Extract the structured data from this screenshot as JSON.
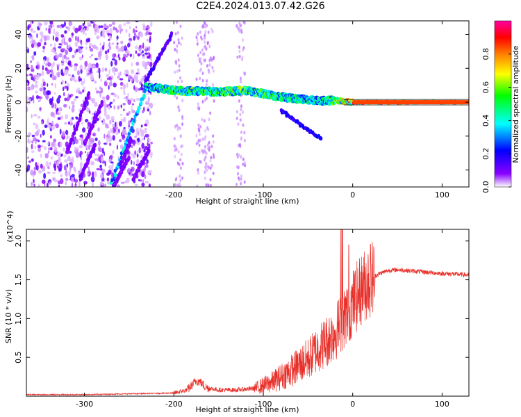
{
  "title": "C2E4.2024.013.07.42.G26",
  "chart_data": [
    {
      "type": "heatmap",
      "xlabel": "Height of straight line (km)",
      "ylabel": "Frequency (Hz)",
      "xlim": [
        -365,
        130
      ],
      "ylim": [
        -50,
        48
      ],
      "xticks": [
        -300,
        -200,
        -100,
        0,
        100
      ],
      "yticks": [
        -40,
        -20,
        0,
        20,
        40
      ],
      "colorbar": {
        "label": "Normalized spectral amplitude",
        "range": [
          0,
          1
        ],
        "ticks": [
          0.0,
          0.2,
          0.4,
          0.6,
          0.8
        ],
        "colors": [
          "#ffffff",
          "#8a00ff",
          "#0000ff",
          "#00ffff",
          "#00ff00",
          "#ffff00",
          "#ff7f00",
          "#ff0000",
          "#ff00a0"
        ]
      },
      "features": {
        "main_band": {
          "x": [
            -230,
            -200,
            -150,
            -120,
            -100,
            -80,
            -60,
            -40,
            -20,
            0,
            50,
            130
          ],
          "frequency": [
            9,
            7,
            6,
            7,
            5,
            3,
            2,
            1,
            1,
            0,
            0,
            0
          ],
          "amplitude": [
            0.4,
            0.5,
            0.5,
            0.55,
            0.5,
            0.5,
            0.45,
            0.4,
            0.55,
            0.8,
            0.8,
            0.8
          ]
        },
        "diagonal_streaks": [
          {
            "x": [
              -270,
              -230
            ],
            "frequency": [
              -48,
              10
            ],
            "amplitude": 0.35
          },
          {
            "x": [
              -232,
              -202
            ],
            "frequency": [
              12,
              40
            ],
            "amplitude": 0.15
          },
          {
            "x": [
              -320,
              -295
            ],
            "frequency": [
              -30,
              5
            ],
            "amplitude": 0.1
          },
          {
            "x": [
              -300,
              -280
            ],
            "frequency": [
              -25,
              0
            ],
            "amplitude": 0.1
          },
          {
            "x": [
              -305,
              -288
            ],
            "frequency": [
              -45,
              -25
            ],
            "amplitude": 0.1
          },
          {
            "x": [
              -260,
              -248
            ],
            "frequency": [
              -38,
              -22
            ],
            "amplitude": 0.1
          },
          {
            "x": [
              -268,
              -250
            ],
            "frequency": [
              -50,
              -32
            ],
            "amplitude": 0.1
          },
          {
            "x": [
              -245,
              -228
            ],
            "frequency": [
              -45,
              -28
            ],
            "amplitude": 0.1
          },
          {
            "x": [
              -80,
              -35
            ],
            "frequency": [
              -5,
              -22
            ],
            "amplitude": 0.2
          }
        ],
        "noise_region_x": [
          -365,
          -225
        ],
        "vertical_bands_x": [
          -195,
          -170,
          -160,
          -125
        ]
      }
    },
    {
      "type": "line",
      "xlabel": "Height of straight line (km)",
      "ylabel": "SNR (10 * v/v)",
      "y_multiplier": "(x10^4)",
      "xlim": [
        -365,
        130
      ],
      "ylim": [
        0,
        2.15
      ],
      "xticks": [
        -300,
        -200,
        -100,
        0,
        100
      ],
      "yticks": [
        0.5,
        1.0,
        1.5,
        2.0
      ],
      "ytick_labels": [
        "0.5",
        "1.0",
        "1.5",
        "2.0"
      ],
      "color": "#e8302a",
      "series": [
        {
          "x": [
            -365,
            -300,
            -250,
            -200,
            -185,
            -175,
            -170,
            -165,
            -160,
            -150,
            -130,
            -110,
            -100,
            -90,
            -80,
            -70,
            -60,
            -50,
            -40,
            -30,
            -20,
            -15,
            -10,
            -5,
            0,
            10,
            20,
            30,
            40,
            50,
            60,
            80,
            100,
            120,
            130
          ],
          "y": [
            0.02,
            0.02,
            0.03,
            0.04,
            0.08,
            0.2,
            0.18,
            0.12,
            0.1,
            0.08,
            0.08,
            0.1,
            0.14,
            0.18,
            0.25,
            0.32,
            0.4,
            0.48,
            0.6,
            0.7,
            0.82,
            0.9,
            1.0,
            1.1,
            1.2,
            1.38,
            1.52,
            1.58,
            1.62,
            1.63,
            1.62,
            1.6,
            1.58,
            1.57,
            1.56
          ]
        }
      ]
    }
  ]
}
